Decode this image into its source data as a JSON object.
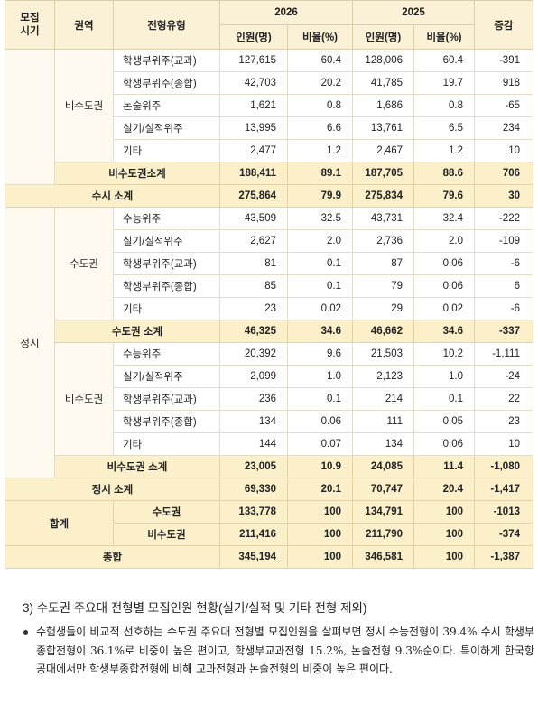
{
  "table": {
    "header": {
      "period": "모집\n시기",
      "region": "권역",
      "type": "전형유형",
      "year_2026": "2026",
      "year_2025": "2025",
      "change": "증감",
      "count_2026": "인원(명)",
      "ratio_2026": "비율(%)",
      "count_2025": "인원(명)",
      "ratio_2025": "비율(%)"
    },
    "susi_region": "비수도권",
    "susi_rows": [
      [
        "학생부위주(교과)",
        "127,615",
        "60.4",
        "128,006",
        "60.4",
        "-391"
      ],
      [
        "학생부위주(종합)",
        "42,703",
        "20.2",
        "41,785",
        "19.7",
        "918"
      ],
      [
        "논술위주",
        "1,621",
        "0.8",
        "1,686",
        "0.8",
        "-65"
      ],
      [
        "실기/실적위주",
        "13,995",
        "6.6",
        "13,761",
        "6.5",
        "234"
      ],
      [
        "기타",
        "2,477",
        "1.2",
        "2,467",
        "1.2",
        "10"
      ]
    ],
    "susi_region_subtotal": [
      "비수도권소계",
      "188,411",
      "89.1",
      "187,705",
      "88.6",
      "706"
    ],
    "susi_subtotal": [
      "수시 소계",
      "275,864",
      "79.9",
      "275,834",
      "79.6",
      "30"
    ],
    "jeongsi_label": "정시",
    "jeongsi_metro_region": "수도권",
    "jeongsi_metro_rows": [
      [
        "수능위주",
        "43,509",
        "32.5",
        "43,731",
        "32.4",
        "-222"
      ],
      [
        "실기/실적위주",
        "2,627",
        "2.0",
        "2,736",
        "2.0",
        "-109"
      ],
      [
        "학생부위주(교과)",
        "81",
        "0.1",
        "87",
        "0.06",
        "-6"
      ],
      [
        "학생부위주(종합)",
        "85",
        "0.1",
        "79",
        "0.06",
        "6"
      ],
      [
        "기타",
        "23",
        "0.02",
        "29",
        "0.02",
        "-6"
      ]
    ],
    "jeongsi_metro_subtotal": [
      "수도권 소계",
      "46,325",
      "34.6",
      "46,662",
      "34.6",
      "-337"
    ],
    "jeongsi_nonmetro_region": "비수도권",
    "jeongsi_nonmetro_rows": [
      [
        "수능위주",
        "20,392",
        "9.6",
        "21,503",
        "10.2",
        "-1,111"
      ],
      [
        "실기/실적위주",
        "2,099",
        "1.0",
        "2,123",
        "1.0",
        "-24"
      ],
      [
        "학생부위주(교과)",
        "236",
        "0.1",
        "214",
        "0.1",
        "22"
      ],
      [
        "학생부위주(종합)",
        "134",
        "0.06",
        "111",
        "0.05",
        "23"
      ],
      [
        "기타",
        "144",
        "0.07",
        "134",
        "0.06",
        "10"
      ]
    ],
    "jeongsi_nonmetro_subtotal": [
      "비수도권 소계",
      "23,005",
      "10.9",
      "24,085",
      "11.4",
      "-1,080"
    ],
    "jeongsi_subtotal": [
      "정시 소계",
      "69,330",
      "20.1",
      "70,747",
      "20.4",
      "-1,417"
    ],
    "total_label": "합계",
    "total_rows": [
      [
        "수도권",
        "133,778",
        "100",
        "134,791",
        "100",
        "-1013"
      ],
      [
        "비수도권",
        "211,416",
        "100",
        "211,790",
        "100",
        "-374"
      ]
    ],
    "grand_total": [
      "총합",
      "345,194",
      "100",
      "346,581",
      "100",
      "-1,387"
    ]
  },
  "section_title": "3) 수도권 주요대 전형별 모집인원 현황(실기/실적 및 기타 전형 제외)",
  "bullet": "수험생들이 비교적 선호하는 수도권 주요대 전형별 모집인원을 살펴보면 정시 수능전형이 39.4% 수시 학생부종합전형이 36.1%로 비중이 높은 편이고, 학생부교과전형 15.2%, 논술전형 9.3%순이다. 특이하게 한국항공대에서만 학생부종합전형에 비해 교과전형과 논술전형의 비중이 높은 편이다."
}
